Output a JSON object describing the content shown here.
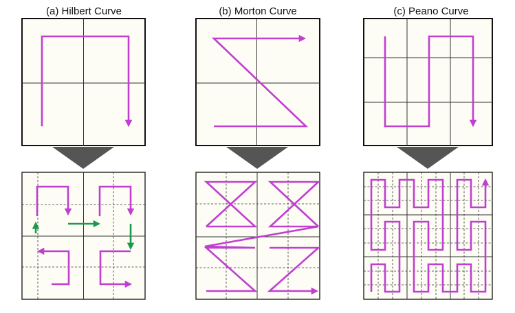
{
  "panels": [
    {
      "caption": "(a) Hilbert Curve"
    },
    {
      "caption": "(b) Morton Curve"
    },
    {
      "caption": "(c) Peano Curve"
    }
  ],
  "colors": {
    "panel_fill": "#fdfcf5",
    "frame": "#111111",
    "grid": "#333333",
    "curve": "#c03fd0",
    "highlight": "#1a9a4a",
    "connector": "#555555"
  }
}
